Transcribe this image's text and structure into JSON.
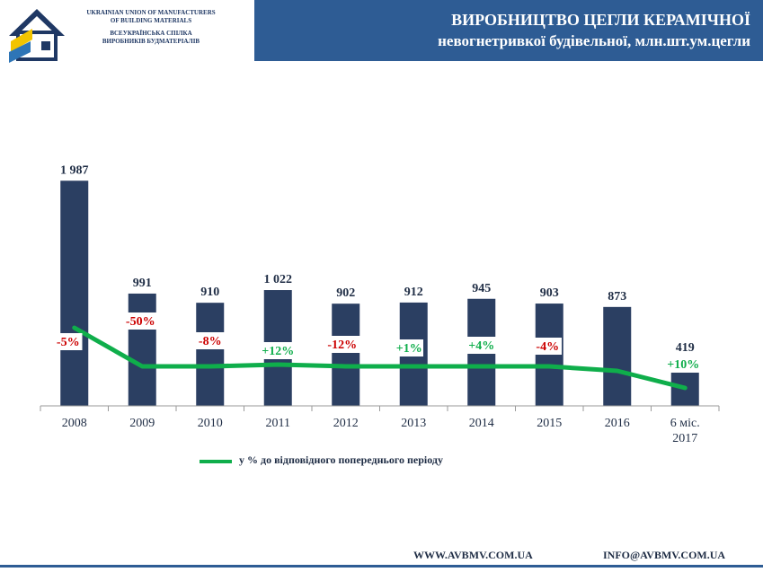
{
  "header": {
    "org_en": [
      "UKRAINIAN UNION OF MANUFACTURERS",
      "OF BUILDING MATERIALS"
    ],
    "org_ua": [
      "ВСЕУКРАЇНСЬКА СПІЛКА",
      "ВИРОБНИКІВ БУДМАТЕРІАЛІВ"
    ],
    "title_line1": "ВИРОБНИЦТВО ЦЕГЛИ КЕРАМІЧНОЇ",
    "title_line2": "невогнетривкої будівельної, млн.шт.ум.цегли"
  },
  "colors": {
    "bar": "#2b3f62",
    "line": "#0fae4b",
    "negative": "#cc0000",
    "positive": "#0fae4b",
    "header_bg": "#2e5c94"
  },
  "chart_data": {
    "type": "bar",
    "categories": [
      "2008",
      "2009",
      "2010",
      "2011",
      "2012",
      "2013",
      "2014",
      "2015",
      "2016",
      "6 міс. 2017"
    ],
    "series": [
      {
        "type": "bar",
        "values": [
          1987,
          991,
          910,
          1022,
          902,
          912,
          945,
          903,
          873,
          419
        ],
        "value_labels": [
          "1 987",
          "991",
          "910",
          "1 022",
          "902",
          "912",
          "945",
          "903",
          "873",
          "419"
        ]
      },
      {
        "type": "line",
        "name": "у % до відповідного попереднього періоду",
        "values": [
          -5,
          -50,
          -8,
          12,
          -12,
          1,
          4,
          -4,
          -3,
          10
        ],
        "value_labels": [
          "-5%",
          "-50%",
          "-8%",
          "+12%",
          "-12%",
          "+1%",
          "+4%",
          "-4%",
          "",
          "+10%"
        ]
      }
    ],
    "ylim": [
      0,
      2100
    ],
    "grid": false,
    "legend_position": "bottom"
  },
  "legend_label": "у % до відповідного попереднього періоду",
  "footer": {
    "website": "WWW.AVBMV.COM.UA",
    "email": "INFO@AVBMV.COM.UA"
  }
}
